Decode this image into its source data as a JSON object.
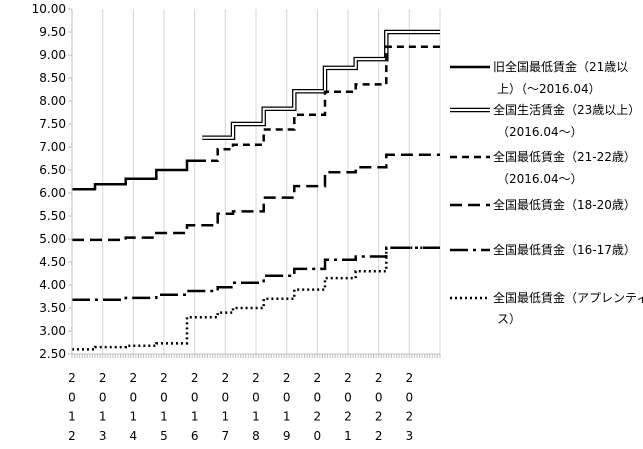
{
  "chart_data": {
    "type": "line",
    "title": "",
    "xlabel": "",
    "ylabel": "",
    "ylim": [
      2.5,
      10.0
    ],
    "yticks": [
      "2.50",
      "3.00",
      "3.50",
      "4.00",
      "4.50",
      "5.00",
      "5.50",
      "6.00",
      "6.50",
      "7.00",
      "7.50",
      "8.00",
      "8.50",
      "9.00",
      "9.50",
      "10.00"
    ],
    "xlim": [
      2012.0,
      2024.0
    ],
    "xticks": [
      {
        "value": 2012,
        "label": "2012"
      },
      {
        "value": 2013,
        "label": "2013"
      },
      {
        "value": 2014,
        "label": "2014"
      },
      {
        "value": 2015,
        "label": "2015"
      },
      {
        "value": 2016,
        "label": "2016"
      },
      {
        "value": 2017,
        "label": "2017"
      },
      {
        "value": 2018,
        "label": "2018"
      },
      {
        "value": 2019,
        "label": "2019"
      },
      {
        "value": 2020,
        "label": "2020"
      },
      {
        "value": 2021,
        "label": "2021"
      },
      {
        "value": 2022,
        "label": "2022"
      },
      {
        "value": 2023,
        "label": "2023"
      }
    ],
    "grid": "vertical",
    "legend_position": "right",
    "series": [
      {
        "name": "旧全国最低賃金（21歳以上）（～2016.04）",
        "legend_lines": [
          "旧全国最低賃金（21歳以",
          "上）（～2016.04）"
        ],
        "style": "solid",
        "x": [
          2012.0,
          2012.75,
          2013.75,
          2014.75,
          2015.75
        ],
        "y": [
          6.08,
          6.19,
          6.31,
          6.5,
          6.7
        ],
        "x_end": 2016.25
      },
      {
        "name": "全国生活賃金（23歳以上）（2016.04～）",
        "legend_lines": [
          "全国生活賃金（23歳以上）",
          "（2016.04～）"
        ],
        "style": "double",
        "x": [
          2016.25,
          2017.25,
          2018.25,
          2019.25,
          2020.25,
          2021.25,
          2022.25
        ],
        "y": [
          7.2,
          7.5,
          7.83,
          8.21,
          8.72,
          8.91,
          9.5
        ],
        "x_end": 2024.0
      },
      {
        "name": "全国最低賃金（21-22歳）（2016.04～）",
        "legend_lines": [
          "全国最低賃金（21-22歳）",
          "（2016.04～）"
        ],
        "style": "dashed",
        "x": [
          2015.75,
          2016.75,
          2017.25,
          2018.25,
          2019.25,
          2020.25,
          2021.25,
          2022.25
        ],
        "y": [
          6.7,
          6.95,
          7.05,
          7.38,
          7.7,
          8.2,
          8.36,
          9.18
        ],
        "x_end": 2024.0
      },
      {
        "name": "全国最低賃金（18-20歳）",
        "legend_lines": [
          "全国最低賃金（18-20歳）"
        ],
        "style": "long-dash",
        "x": [
          2012.0,
          2013.75,
          2014.75,
          2015.75,
          2016.75,
          2017.25,
          2018.25,
          2019.25,
          2020.25,
          2021.25,
          2022.25
        ],
        "y": [
          4.98,
          5.03,
          5.13,
          5.3,
          5.55,
          5.6,
          5.9,
          6.15,
          6.45,
          6.56,
          6.83
        ],
        "x_end": 2024.0
      },
      {
        "name": "全国最低賃金（16-17歳）",
        "legend_lines": [
          "全国最低賃金（16-17歳）"
        ],
        "style": "dash-dot",
        "x": [
          2012.0,
          2013.75,
          2014.75,
          2015.75,
          2016.75,
          2017.25,
          2018.25,
          2019.25,
          2020.25,
          2021.25,
          2022.25
        ],
        "y": [
          3.68,
          3.72,
          3.79,
          3.87,
          3.95,
          4.05,
          4.2,
          4.35,
          4.55,
          4.62,
          4.81
        ],
        "x_end": 2024.0
      },
      {
        "name": "全国最低賃金（アプレンティス）",
        "legend_lines": [
          "全国最低賃金（アプレンティ",
          "ス）"
        ],
        "style": "dotted",
        "x": [
          2012.0,
          2012.75,
          2013.75,
          2014.75,
          2015.75,
          2016.75,
          2017.25,
          2018.25,
          2019.25,
          2020.25,
          2021.25,
          2022.25
        ],
        "y": [
          2.6,
          2.65,
          2.68,
          2.73,
          3.3,
          3.4,
          3.5,
          3.7,
          3.9,
          4.15,
          4.3,
          4.81
        ],
        "x_end": 2024.0
      }
    ]
  }
}
